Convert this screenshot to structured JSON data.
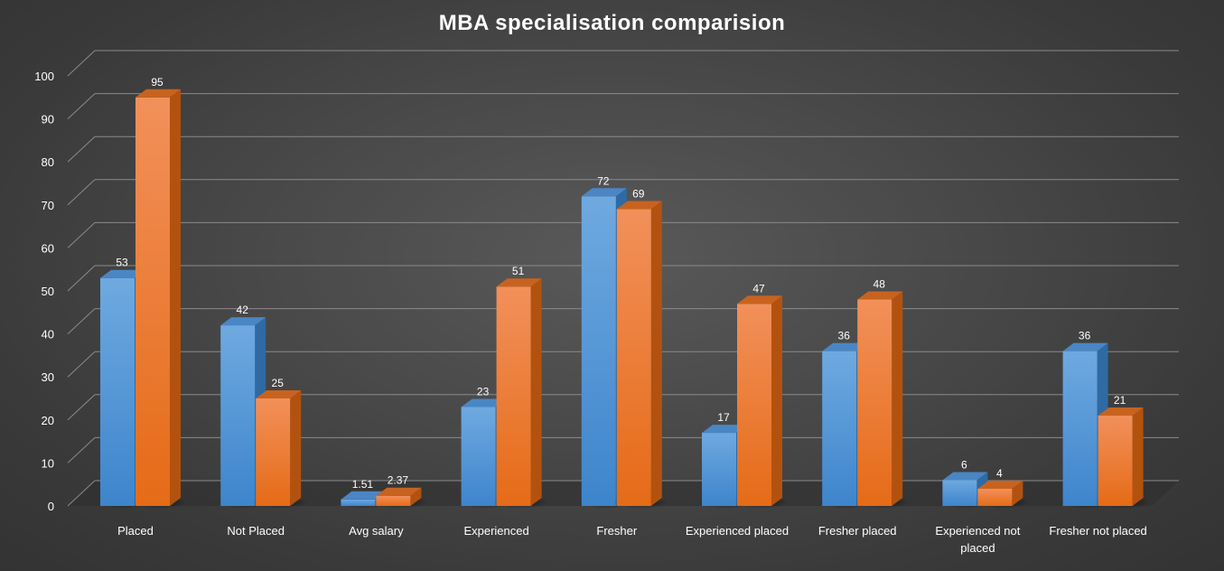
{
  "chart_data": {
    "type": "bar",
    "title": "MBA specialisation comparision",
    "xlabel": "",
    "ylabel": "",
    "ylim": [
      0,
      100
    ],
    "yticks": [
      0,
      10,
      20,
      30,
      40,
      50,
      60,
      70,
      80,
      90,
      100
    ],
    "grid": true,
    "legend": "none",
    "categories": [
      [
        "Placed"
      ],
      [
        "Not Placed"
      ],
      [
        "Avg salary"
      ],
      [
        "Experienced"
      ],
      [
        "Fresher"
      ],
      [
        "Experienced placed"
      ],
      [
        "Fresher placed"
      ],
      [
        "Experienced not",
        "placed"
      ],
      [
        "Fresher not placed"
      ]
    ],
    "series": [
      {
        "color": "#5b9bd5",
        "values": [
          53,
          42,
          1.51,
          23,
          72,
          17,
          36,
          6,
          36
        ],
        "labels": [
          "53",
          "42",
          "1.51",
          "23",
          "72",
          "17",
          "36",
          "6",
          "36"
        ]
      },
      {
        "color": "#ed7d31",
        "values": [
          95,
          25,
          2.37,
          51,
          69,
          47,
          48,
          4,
          21
        ],
        "labels": [
          "95",
          "25",
          "2.37",
          "51",
          "69",
          "47",
          "48",
          "4",
          "21"
        ]
      }
    ]
  }
}
